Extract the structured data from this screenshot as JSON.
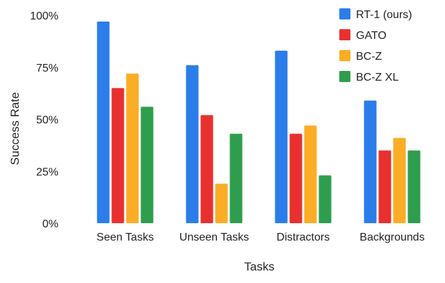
{
  "chart_data": {
    "type": "bar",
    "title": "",
    "xlabel": "Tasks",
    "ylabel": "Success Rate",
    "categories": [
      "Seen Tasks",
      "Unseen Tasks",
      "Distractors",
      "Backgrounds"
    ],
    "ylim": [
      0,
      100
    ],
    "yticks": [
      0,
      25,
      50,
      75,
      100
    ],
    "ytick_labels": [
      "0%",
      "25%",
      "50%",
      "75%",
      "100%"
    ],
    "grid": false,
    "legend_position": "top-right",
    "series": [
      {
        "name": "RT-1 (ours)",
        "color": "#2b7de9",
        "values": [
          97,
          76,
          83,
          59
        ]
      },
      {
        "name": "GATO",
        "color": "#e8312f",
        "values": [
          65,
          52,
          43,
          35
        ]
      },
      {
        "name": "BC-Z",
        "color": "#fbad26",
        "values": [
          72,
          19,
          47,
          41
        ]
      },
      {
        "name": "BC-Z XL",
        "color": "#2e9e4e",
        "values": [
          56,
          43,
          23,
          35
        ]
      }
    ]
  }
}
